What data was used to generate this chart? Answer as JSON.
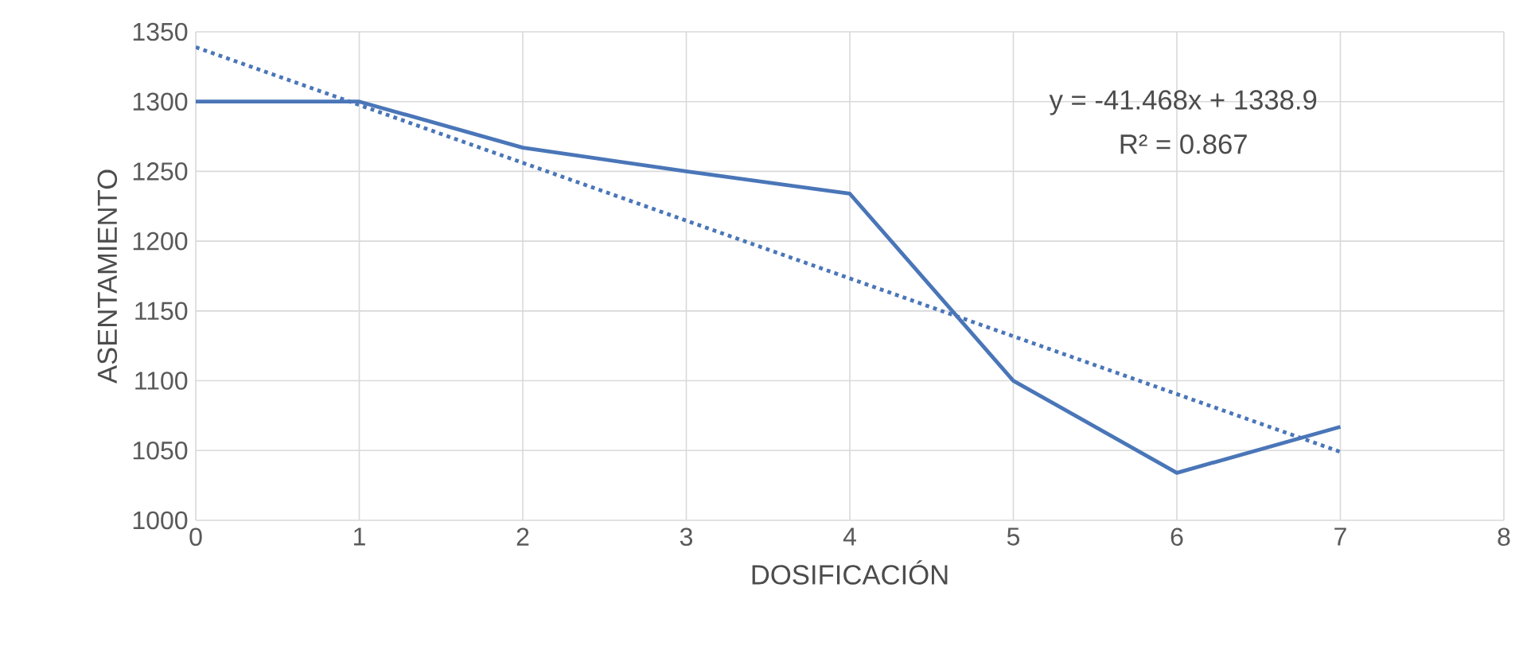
{
  "chart_data": {
    "type": "line",
    "xlabel": "DOSIFICACIÓN",
    "ylabel": "ASENTAMIENTO",
    "x": [
      0,
      1,
      2,
      3,
      4,
      5,
      6,
      7
    ],
    "series": [
      {
        "color": "#4a76b8",
        "values": [
          1300,
          1300,
          1267,
          1250,
          1234,
          1100,
          1034,
          1067
        ],
        "line_style": "solid"
      },
      {
        "type": "line",
        "color": "#4a76b8",
        "x": [
          0,
          7
        ],
        "values": [
          1339,
          1049
        ],
        "line_style": "dotted"
      }
    ],
    "annotations": [
      "y = -41.468x + 1338.9",
      "R² = 0.867"
    ],
    "xlim": [
      0,
      8
    ],
    "xticks": [
      0,
      1,
      2,
      3,
      4,
      5,
      6,
      7,
      8
    ],
    "ylim": [
      1000,
      1350
    ],
    "yticks": [
      1000,
      1050,
      1100,
      1150,
      1200,
      1250,
      1300,
      1350
    ],
    "grid": true
  }
}
